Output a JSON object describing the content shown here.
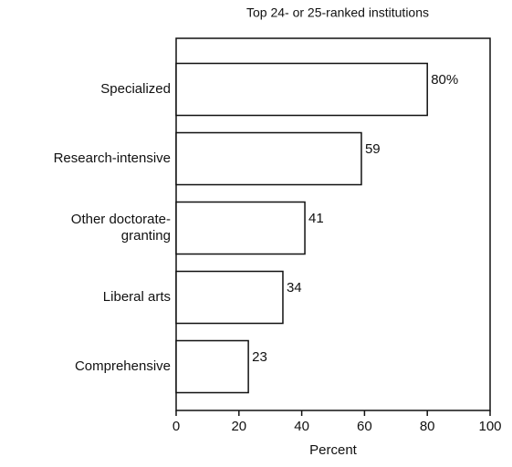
{
  "chart_data": {
    "type": "bar",
    "orientation": "horizontal",
    "title": "Top 24- or 25-ranked institutions",
    "categories": [
      "Specialized",
      "Research-intensive",
      [
        "Other doctorate-",
        "granting"
      ],
      "Liberal arts",
      "Comprehensive"
    ],
    "values": [
      80,
      59,
      41,
      34,
      23
    ],
    "value_labels": [
      "80%",
      "59",
      "41",
      "34",
      "23"
    ],
    "color": "#ffffff",
    "xlabel": "Percent",
    "xlim": [
      0,
      100
    ],
    "xticks": [
      0,
      20,
      40,
      60,
      80,
      100
    ],
    "grid": false
  }
}
